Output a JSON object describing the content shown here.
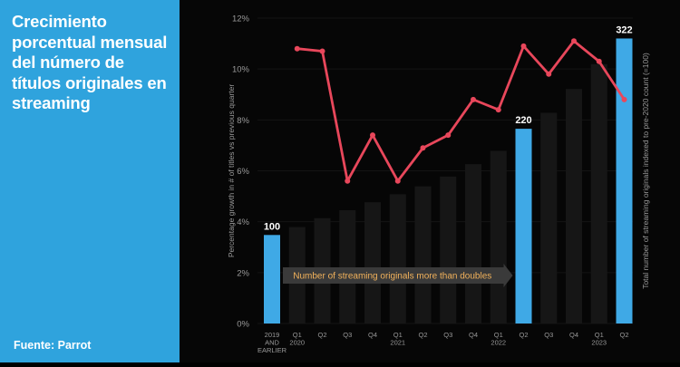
{
  "sidebar": {
    "title": "Crecimiento porcentual mensual del número de títulos originales en streaming",
    "source": "Fuente: Parrot"
  },
  "colors": {
    "sidebar_bg": "#2fa3dd",
    "highlight_bar": "#3fa9e6",
    "bar": "#161616",
    "line": "#e8475b",
    "arrow": "#3a3a3a",
    "arrow_text": "#f2b25b"
  },
  "chart_data": {
    "type": "bar+line",
    "categories": [
      [
        "2019",
        "AND",
        "EARLIER"
      ],
      [
        "Q1",
        "2020"
      ],
      [
        "Q2"
      ],
      [
        "Q3"
      ],
      [
        "Q4"
      ],
      [
        "Q1",
        "2021"
      ],
      [
        "Q2"
      ],
      [
        "Q3"
      ],
      [
        "Q4"
      ],
      [
        "Q1",
        "2022"
      ],
      [
        "Q2"
      ],
      [
        "Q3"
      ],
      [
        "Q4"
      ],
      [
        "Q1",
        "2023"
      ],
      [
        "Q2"
      ]
    ],
    "bar_index_values": [
      100,
      109,
      119,
      128,
      137,
      146,
      155,
      166,
      180,
      195,
      220,
      238,
      265,
      293,
      322
    ],
    "highlighted_bars": [
      0,
      10,
      14
    ],
    "bar_labels": [
      {
        "index": 0,
        "text": "100"
      },
      {
        "index": 10,
        "text": "220"
      },
      {
        "index": 14,
        "text": "322"
      }
    ],
    "growth_pct": [
      null,
      10.8,
      10.7,
      5.6,
      7.4,
      5.6,
      6.9,
      7.4,
      8.8,
      8.4,
      10.9,
      9.8,
      11.1,
      10.3,
      8.8
    ],
    "y_left": {
      "label": "Percentage growth in # of titles vs previous quarter",
      "ticks": [
        "0%",
        "2%",
        "4%",
        "6%",
        "8%",
        "10%",
        "12%"
      ],
      "range": [
        0,
        12
      ]
    },
    "y_right": {
      "label": "Total number of streaming originals indexed to pre-2020 count (=100)",
      "range": [
        0,
        345
      ]
    },
    "annotation": "Number of streaming originals more than doubles"
  }
}
